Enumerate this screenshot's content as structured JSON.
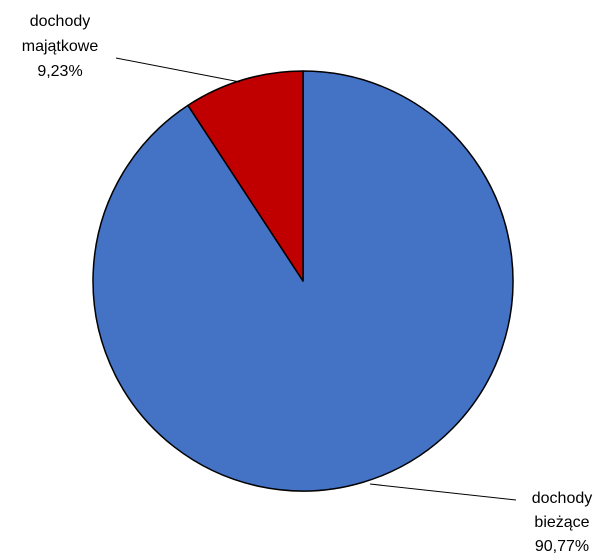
{
  "chart_data": {
    "type": "pie",
    "title": "",
    "start_angle_deg": 0,
    "direction": "clockwise",
    "slices": [
      {
        "category": [
          "dochody",
          "bieżące"
        ],
        "value": 90.77,
        "label_value": "90,77%",
        "color": "#4472C4"
      },
      {
        "category": [
          "dochody",
          "majątkowe"
        ],
        "value": 9.23,
        "label_value": "9,23%",
        "color": "#C00000"
      }
    ],
    "legend": "none",
    "slice_border_color": "#000000"
  }
}
